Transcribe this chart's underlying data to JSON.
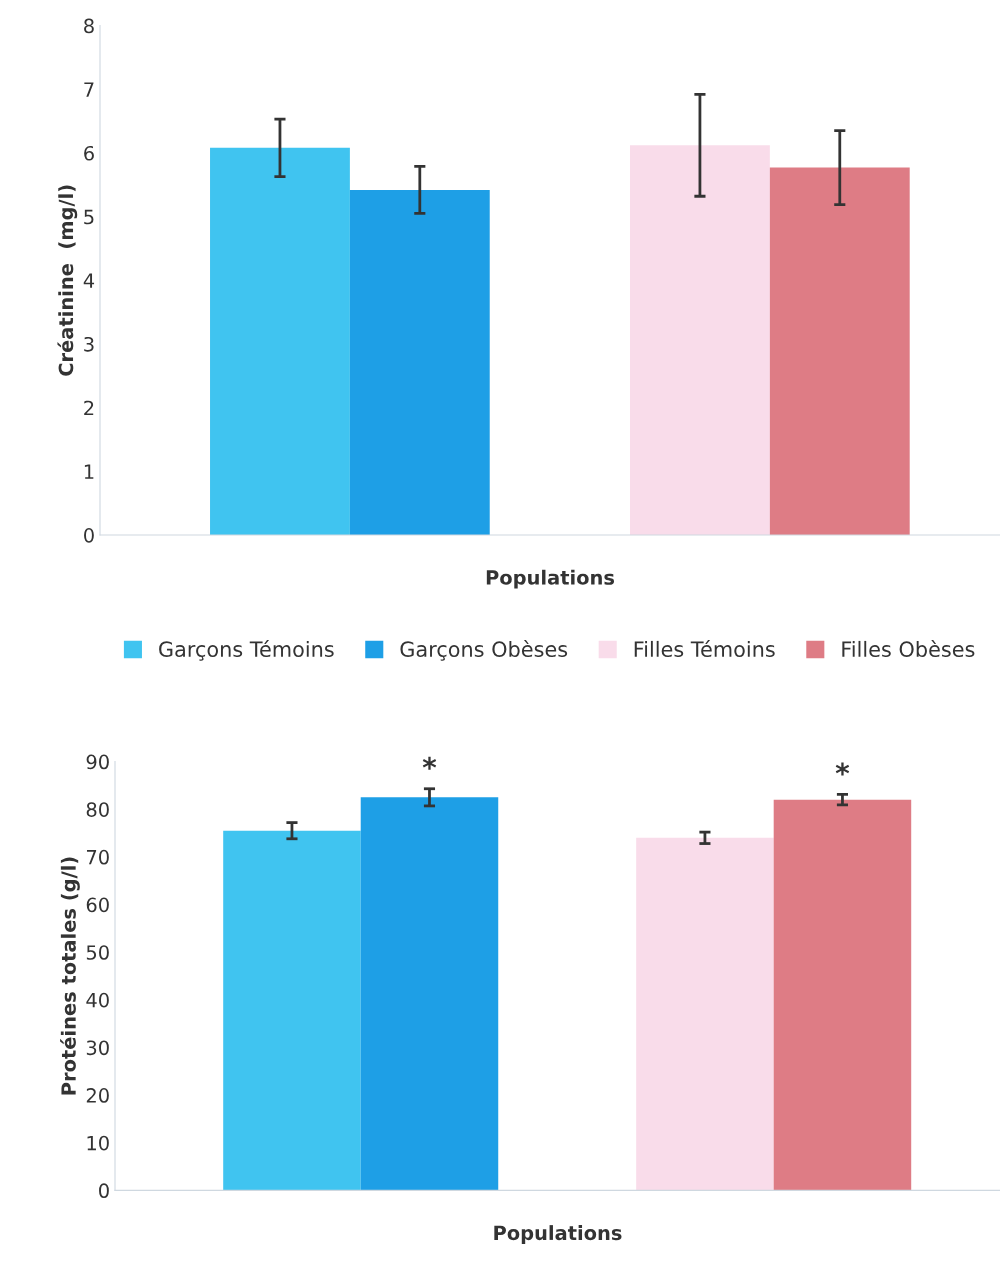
{
  "chart_data": [
    {
      "type": "bar",
      "xlabel": "Populations",
      "ylabel": "Créatinine  (mg/l)",
      "categories": [
        null,
        null
      ],
      "ylim": [
        0,
        8
      ],
      "yticks": [
        0,
        1,
        2,
        3,
        4,
        5,
        6,
        7,
        8
      ],
      "grid": false,
      "legend": "bottom",
      "series": [
        {
          "name": "Garçons Témoins",
          "color": "#40c4f0",
          "values": [
            6.08,
            null
          ],
          "errors": [
            0.45,
            null
          ]
        },
        {
          "name": "Garçons Obèses",
          "color": "#1e9fe6",
          "values": [
            5.42,
            null
          ],
          "errors": [
            0.37,
            null
          ]
        },
        {
          "name": "Filles Témoins",
          "color": "#f9dcea",
          "values": [
            null,
            6.12
          ],
          "errors": [
            null,
            0.8
          ]
        },
        {
          "name": "Filles Obèses",
          "color": "#de7c85",
          "values": [
            null,
            5.77
          ],
          "errors": [
            null,
            0.58
          ]
        }
      ]
    },
    {
      "type": "bar",
      "xlabel": "Populations",
      "ylabel": "Protéines totales (g/l)",
      "categories": [
        null,
        null
      ],
      "ylim": [
        0,
        90
      ],
      "yticks": [
        0,
        10,
        20,
        30,
        40,
        50,
        60,
        70,
        80,
        90
      ],
      "grid": false,
      "series": [
        {
          "color": "#40c4f0",
          "values": [
            75.5,
            null
          ],
          "errors": [
            1.7,
            null
          ]
        },
        {
          "color": "#1e9fe6",
          "values": [
            82.5,
            null
          ],
          "errors": [
            1.8,
            null
          ]
        },
        {
          "color": "#f9dcea",
          "values": [
            null,
            74
          ],
          "errors": [
            null,
            1.2
          ]
        },
        {
          "color": "#de7c85",
          "values": [
            null,
            82
          ],
          "errors": [
            null,
            1.1
          ]
        }
      ],
      "annotations": [
        "*",
        "*"
      ]
    }
  ]
}
